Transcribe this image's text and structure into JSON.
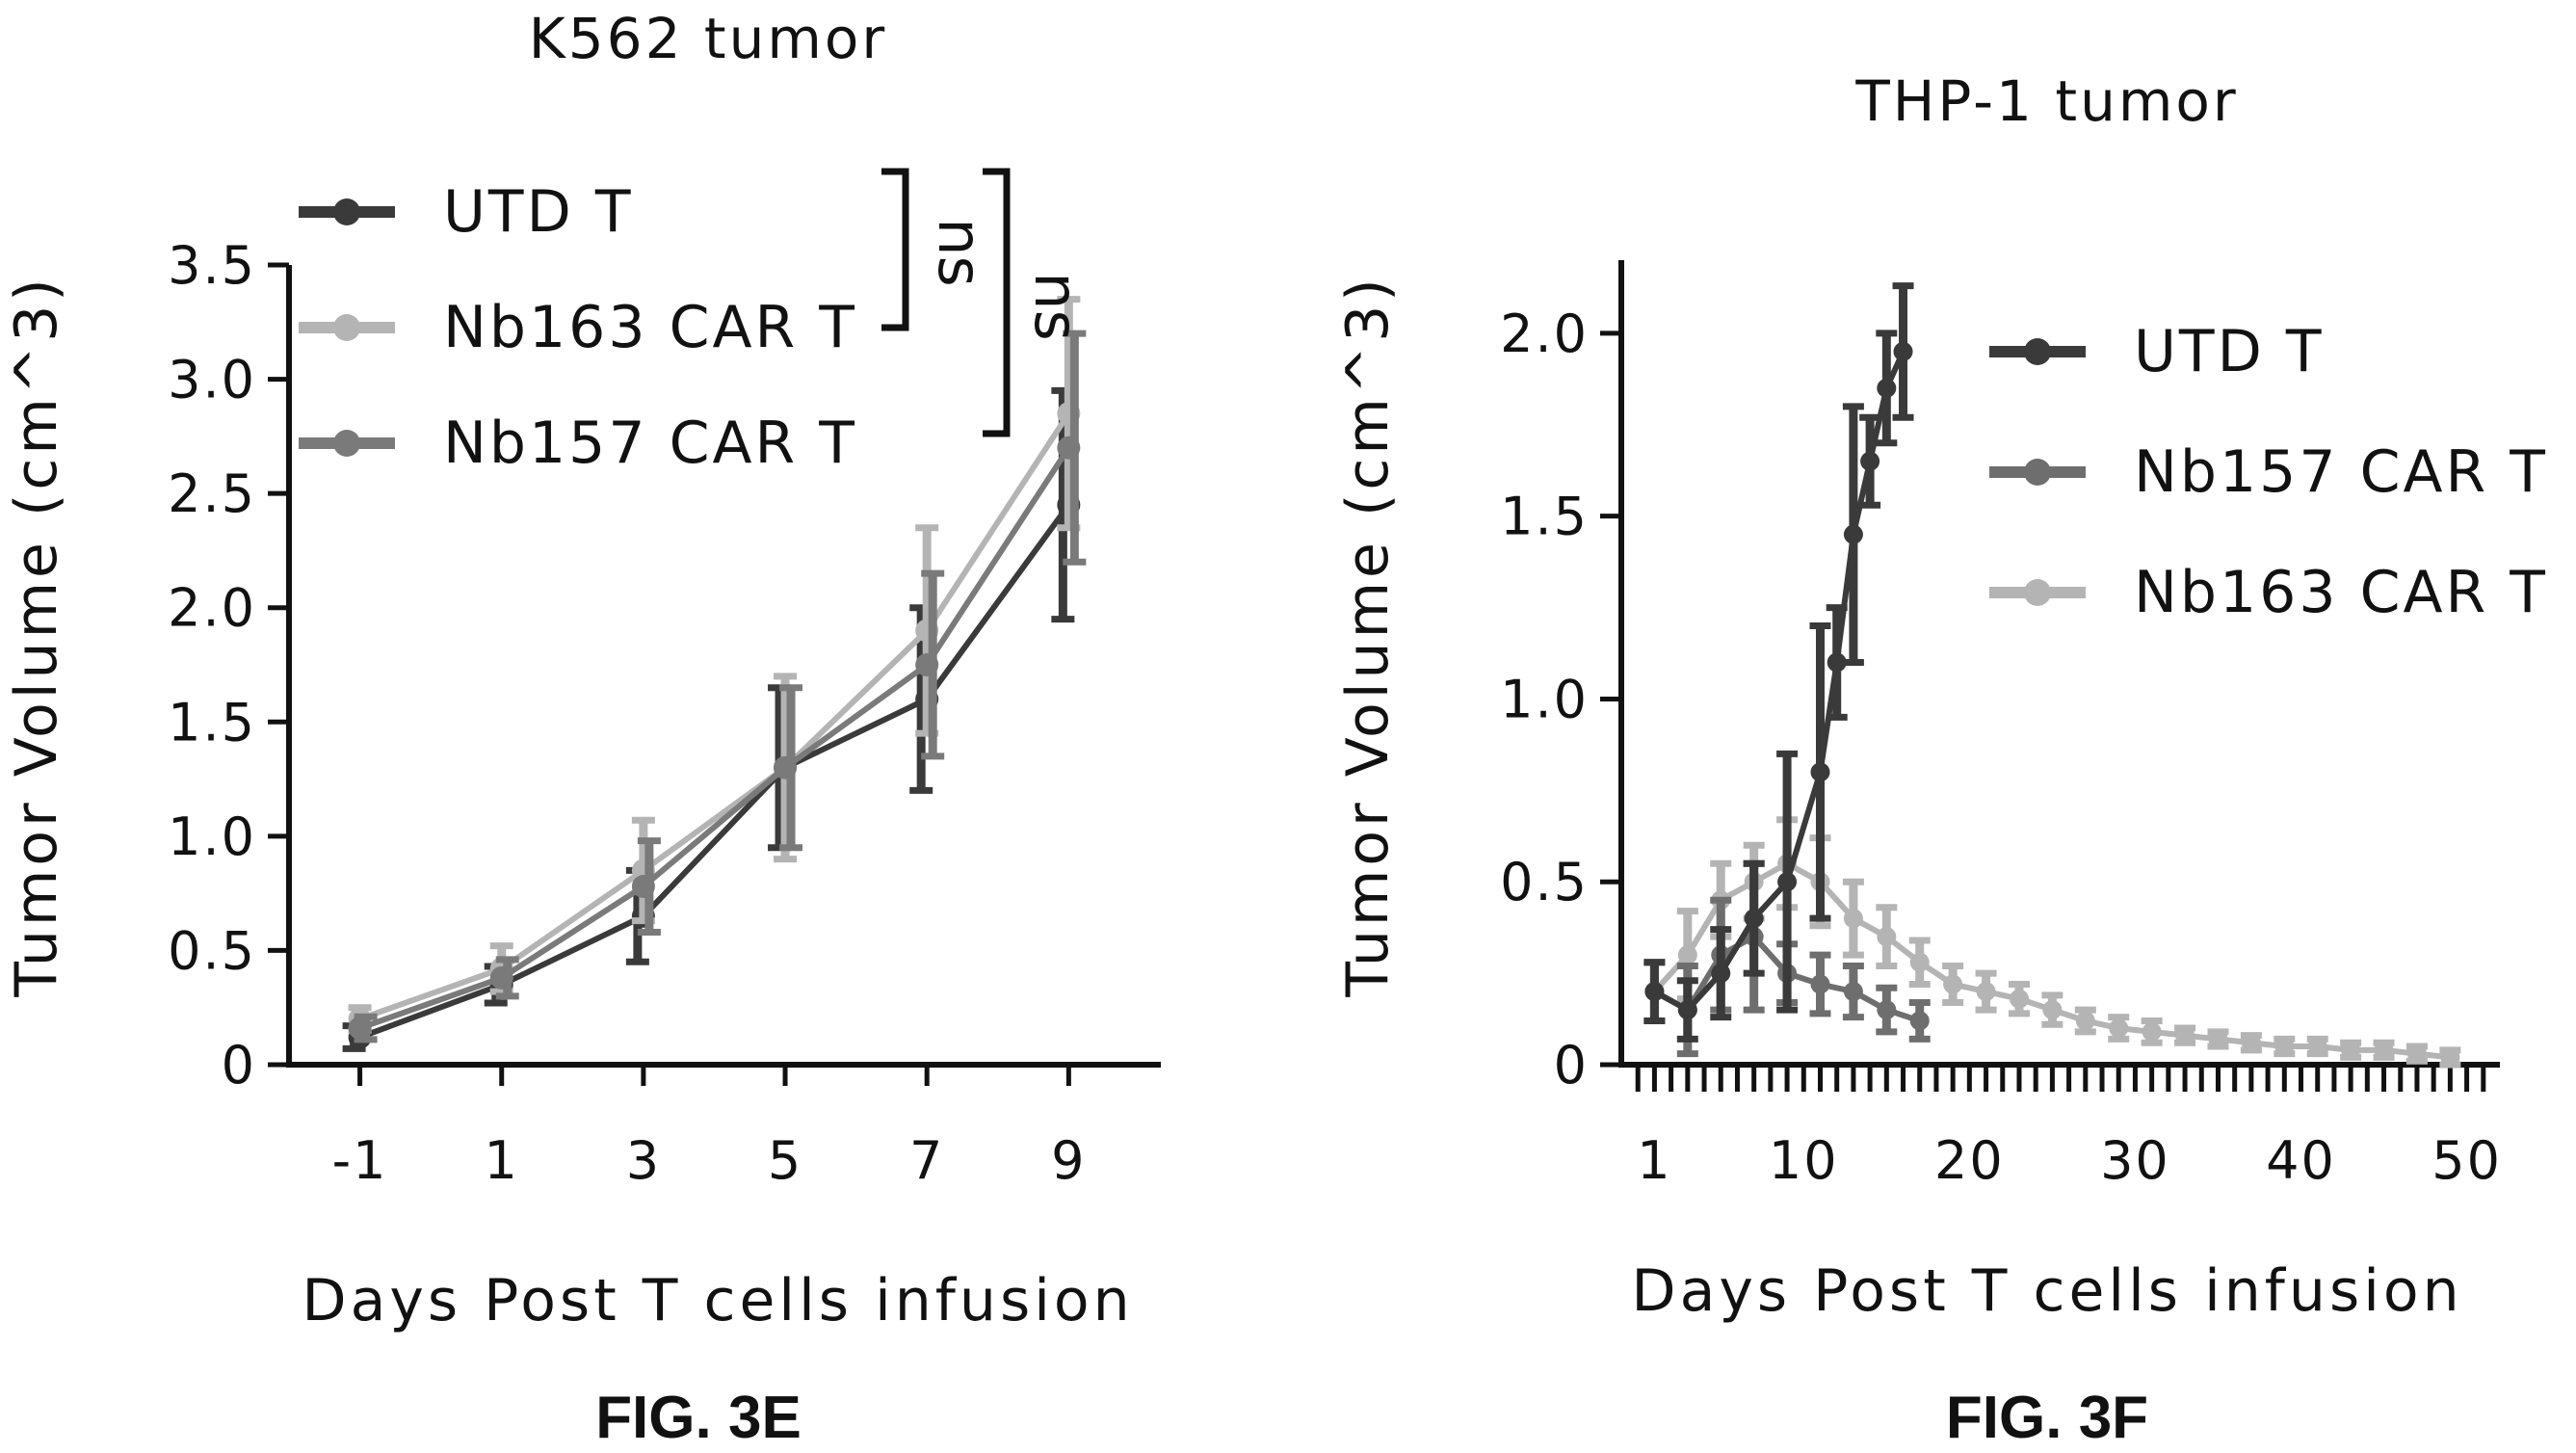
{
  "chart_data": [
    {
      "type": "line",
      "title": "K562 tumor",
      "xlabel": "Days Post T cells infusion",
      "ylabel": "Tumor Volume (cm^3)",
      "figure_label": "FIG. 3E",
      "x": [
        -1,
        1,
        3,
        5,
        7,
        9
      ],
      "xticks": [
        "-1",
        "1",
        "3",
        "5",
        "7",
        "9"
      ],
      "yticks": [
        "0",
        "0.5",
        "1.0",
        "1.5",
        "2.0",
        "2.5",
        "3.0",
        "3.5"
      ],
      "ylim": [
        0,
        3.5
      ],
      "legend_position": "top-left",
      "annotations": [
        "ns",
        "ns"
      ],
      "series": [
        {
          "name": "UTD T",
          "color": "#3a3a3a",
          "values": [
            0.12,
            0.35,
            0.65,
            1.3,
            1.6,
            2.45
          ],
          "errors": [
            0.05,
            0.08,
            0.2,
            0.35,
            0.4,
            0.5
          ]
        },
        {
          "name": "Nb163 CAR T",
          "color": "#b4b4b4",
          "values": [
            0.2,
            0.42,
            0.85,
            1.3,
            1.9,
            2.85
          ],
          "errors": [
            0.05,
            0.1,
            0.22,
            0.4,
            0.45,
            0.5
          ]
        },
        {
          "name": "Nb157 CAR T",
          "color": "#7a7a7a",
          "values": [
            0.16,
            0.38,
            0.78,
            1.3,
            1.75,
            2.7
          ],
          "errors": [
            0.05,
            0.08,
            0.2,
            0.35,
            0.4,
            0.5
          ]
        }
      ]
    },
    {
      "type": "line",
      "title": "THP-1 tumor",
      "xlabel": "Days Post T cells infusion",
      "ylabel": "Tumor Volume (cm^3)",
      "figure_label": "FIG. 3F",
      "xticks": [
        "1",
        "10",
        "20",
        "30",
        "40",
        "50"
      ],
      "xtick_values": [
        1,
        10,
        20,
        30,
        40,
        50
      ],
      "yticks": [
        "0",
        "0.5",
        "1.0",
        "1.5",
        "2.0"
      ],
      "ylim": [
        0,
        2.2
      ],
      "xlim": [
        -1,
        52
      ],
      "legend_position": "top-right",
      "series": [
        {
          "name": "UTD T",
          "color": "#3a3a3a",
          "x": [
            1,
            3,
            5,
            7,
            9,
            11,
            12,
            13,
            14,
            15,
            16
          ],
          "values": [
            0.2,
            0.15,
            0.25,
            0.4,
            0.5,
            0.8,
            1.1,
            1.45,
            1.65,
            1.85,
            1.95
          ],
          "errors": [
            0.08,
            0.08,
            0.12,
            0.15,
            0.35,
            0.4,
            0.15,
            0.35,
            0.12,
            0.15,
            0.18
          ]
        },
        {
          "name": "Nb157 CAR T",
          "color": "#6e6e6e",
          "x": [
            1,
            3,
            5,
            7,
            9,
            11,
            13,
            15,
            17
          ],
          "values": [
            0.2,
            0.15,
            0.3,
            0.35,
            0.25,
            0.22,
            0.2,
            0.15,
            0.12
          ],
          "errors": [
            0.08,
            0.12,
            0.15,
            0.2,
            0.08,
            0.08,
            0.07,
            0.06,
            0.05
          ]
        },
        {
          "name": "Nb163 CAR T",
          "color": "#b4b4b4",
          "x": [
            1,
            3,
            5,
            7,
            9,
            11,
            13,
            15,
            17,
            19,
            21,
            23,
            25,
            27,
            29,
            31,
            33,
            35,
            37,
            39,
            41,
            43,
            45,
            47,
            49
          ],
          "values": [
            0.2,
            0.3,
            0.45,
            0.5,
            0.55,
            0.5,
            0.4,
            0.35,
            0.28,
            0.22,
            0.2,
            0.18,
            0.15,
            0.12,
            0.1,
            0.09,
            0.08,
            0.07,
            0.06,
            0.05,
            0.05,
            0.04,
            0.04,
            0.03,
            0.02
          ],
          "errors": [
            0.08,
            0.12,
            0.1,
            0.1,
            0.12,
            0.12,
            0.1,
            0.08,
            0.06,
            0.05,
            0.05,
            0.04,
            0.04,
            0.03,
            0.03,
            0.03,
            0.02,
            0.02,
            0.02,
            0.02,
            0.02,
            0.02,
            0.02,
            0.02,
            0.02
          ]
        }
      ]
    }
  ]
}
